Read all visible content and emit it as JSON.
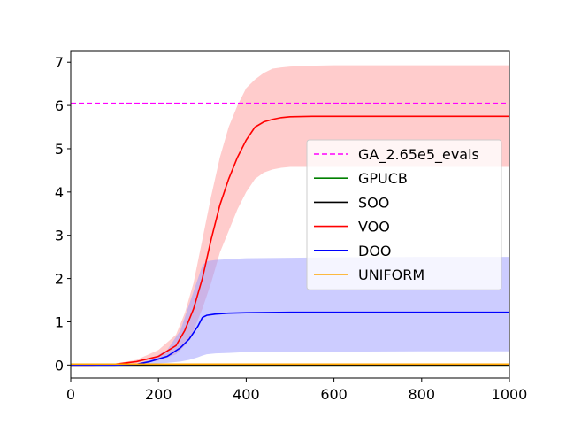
{
  "chart_data": {
    "type": "line",
    "title": "",
    "xlabel": "",
    "ylabel": "",
    "xlim": [
      0,
      1000
    ],
    "ylim": [
      -0.3,
      7.25
    ],
    "x_ticks": [
      0,
      200,
      400,
      600,
      800,
      1000
    ],
    "y_ticks": [
      0,
      1,
      2,
      3,
      4,
      5,
      6,
      7
    ],
    "grid": false,
    "legend_position": "center-right",
    "series": [
      {
        "name": "GA_2.65e5_evals",
        "style": "dashed",
        "color": "#ff00ff",
        "x": [
          0,
          1000
        ],
        "y": [
          6.05,
          6.05
        ]
      },
      {
        "name": "GPUCB",
        "style": "solid",
        "color": "#008000",
        "x": [
          0,
          1000
        ],
        "y": [
          0.0,
          0.0
        ]
      },
      {
        "name": "SOO",
        "style": "solid",
        "color": "#000000",
        "x": [
          0,
          1000
        ],
        "y": [
          0.0,
          0.0
        ]
      },
      {
        "name": "VOO",
        "style": "solid",
        "color": "#ff0000",
        "band_color": "#ff9999",
        "x": [
          0,
          50,
          100,
          150,
          200,
          240,
          260,
          280,
          300,
          320,
          340,
          360,
          380,
          400,
          420,
          440,
          460,
          480,
          500,
          550,
          600,
          700,
          800,
          1000
        ],
        "y": [
          0.0,
          0.0,
          0.02,
          0.08,
          0.2,
          0.45,
          0.8,
          1.3,
          2.0,
          2.9,
          3.7,
          4.3,
          4.8,
          5.2,
          5.5,
          5.62,
          5.68,
          5.72,
          5.74,
          5.75,
          5.75,
          5.75,
          5.75,
          5.75
        ],
        "upper": [
          0.0,
          0.0,
          0.03,
          0.12,
          0.35,
          0.7,
          1.2,
          1.9,
          2.9,
          3.9,
          4.8,
          5.5,
          6.0,
          6.4,
          6.6,
          6.75,
          6.85,
          6.88,
          6.9,
          6.92,
          6.93,
          6.93,
          6.93,
          6.93
        ],
        "lower": [
          0.0,
          0.0,
          0.0,
          0.04,
          0.1,
          0.25,
          0.45,
          0.8,
          1.3,
          1.9,
          2.6,
          3.1,
          3.6,
          4.0,
          4.3,
          4.45,
          4.52,
          4.56,
          4.58,
          4.58,
          4.58,
          4.58,
          4.58,
          4.58
        ]
      },
      {
        "name": "DOO",
        "style": "solid",
        "color": "#0000ff",
        "band_color": "#9999ff",
        "x": [
          0,
          100,
          150,
          180,
          220,
          250,
          270,
          290,
          300,
          310,
          330,
          360,
          400,
          500,
          600,
          800,
          1000
        ],
        "y": [
          0.0,
          0.0,
          0.02,
          0.08,
          0.2,
          0.4,
          0.6,
          0.9,
          1.1,
          1.15,
          1.18,
          1.2,
          1.21,
          1.22,
          1.22,
          1.22,
          1.22
        ],
        "upper": [
          0.0,
          0.0,
          0.03,
          0.12,
          0.35,
          0.8,
          1.4,
          2.0,
          2.3,
          2.4,
          2.43,
          2.45,
          2.47,
          2.48,
          2.49,
          2.5,
          2.5
        ],
        "lower": [
          0.0,
          0.0,
          0.0,
          0.03,
          0.05,
          0.08,
          0.12,
          0.18,
          0.22,
          0.25,
          0.27,
          0.28,
          0.3,
          0.31,
          0.31,
          0.32,
          0.32
        ]
      },
      {
        "name": "UNIFORM",
        "style": "solid",
        "color": "#ffa500",
        "x": [
          0,
          1000
        ],
        "y": [
          0.02,
          0.02
        ]
      }
    ]
  }
}
